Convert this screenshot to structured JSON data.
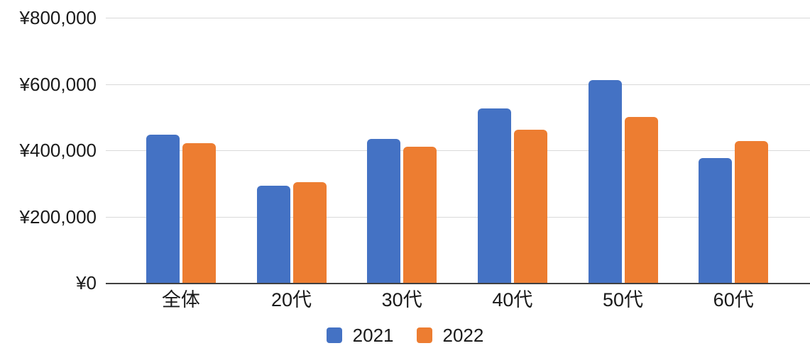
{
  "chart_data": {
    "type": "bar",
    "title": "",
    "categories": [
      "全体",
      "20代",
      "30代",
      "40代",
      "50代",
      "60代"
    ],
    "series": [
      {
        "name": "2021",
        "color": "#4472C4",
        "values": [
          448000,
          293000,
          434000,
          526000,
          612000,
          376000
        ]
      },
      {
        "name": "2022",
        "color": "#ED7D31",
        "values": [
          422000,
          304000,
          410000,
          462000,
          501000,
          428000
        ]
      }
    ],
    "y_axis": {
      "min": 0,
      "max": 800000,
      "tick_step": 200000,
      "unit": "JPY",
      "ticks": [
        {
          "value": 0,
          "label": "¥0"
        },
        {
          "value": 200000,
          "label": "¥200,000"
        },
        {
          "value": 400000,
          "label": "¥400,000"
        },
        {
          "value": 600000,
          "label": "¥600,000"
        },
        {
          "value": 800000,
          "label": "¥800,000"
        }
      ]
    },
    "xlabel": "",
    "ylabel": "",
    "grid": true,
    "legend_position": "bottom",
    "colors": {
      "gridline": "#d9d9d9",
      "axis_line": "#404040",
      "text": "#1a1a1a",
      "background": "#ffffff"
    }
  }
}
